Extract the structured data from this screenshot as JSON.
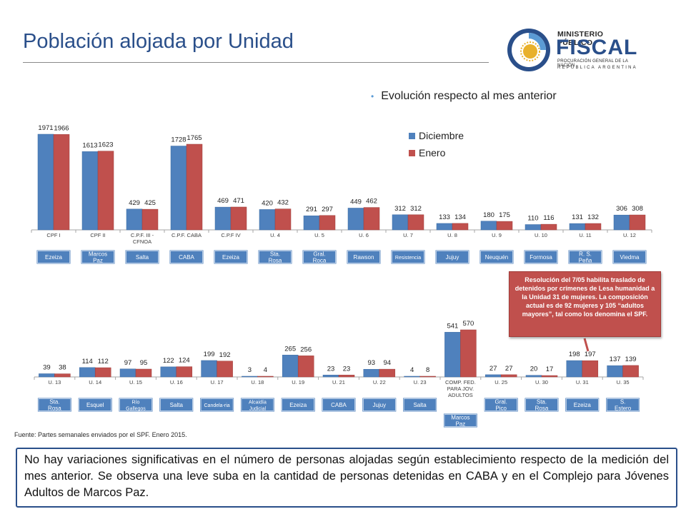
{
  "title": "Población alojada por Unidad",
  "subtitle": "Evolución respecto al mes anterior",
  "logo": {
    "line1": "MINISTERIO PÚBLICO",
    "line2": "FISCAL",
    "line3": "PROCURACIÓN GENERAL DE LA NACIÓN",
    "line4": "REPÚBLICA ARGENTINA"
  },
  "colors": {
    "diciembre": "#4f81bd",
    "enero": "#c0504d",
    "tag": "#4f81bd",
    "title": "#2a4f8a"
  },
  "chart_data": [
    {
      "type": "bar",
      "title": "",
      "legend_position": "top-right",
      "series": [
        {
          "name": "Diciembre",
          "values": [
            1971,
            1613,
            429,
            1728,
            469,
            420,
            291,
            449,
            312,
            133,
            180,
            110,
            131,
            306
          ]
        },
        {
          "name": "Enero",
          "values": [
            1966,
            1623,
            425,
            1765,
            471,
            432,
            297,
            462,
            312,
            134,
            175,
            116,
            132,
            308
          ]
        }
      ],
      "categories": [
        "CPF I",
        "CPF II",
        "C.P.F. III - CFNOA",
        "C.P.F. CABA",
        "C.P.F IV",
        "U. 4",
        "U. 5",
        "U. 6",
        "U. 7",
        "U. 8",
        "U. 9",
        "U. 10",
        "U. 11",
        "U. 12"
      ],
      "locations": [
        [
          "Ezeiza"
        ],
        [
          "Marcos Paz"
        ],
        [
          "Salta"
        ],
        [
          "CABA"
        ],
        [
          "Ezeiza"
        ],
        [
          "Sta. Rosa"
        ],
        [
          "Gral. Roca"
        ],
        [
          "Rawson"
        ],
        [
          "Resistencia"
        ],
        [
          "Jujuy"
        ],
        [
          "Neuquén"
        ],
        [
          "Formosa"
        ],
        [
          "R. S. Peña"
        ],
        [
          "Viedma"
        ]
      ]
    },
    {
      "type": "bar",
      "title": "",
      "series": [
        {
          "name": "Diciembre",
          "values": [
            39,
            114,
            97,
            122,
            199,
            3,
            265,
            23,
            93,
            4,
            541,
            27,
            20,
            198,
            137
          ]
        },
        {
          "name": "Enero",
          "values": [
            38,
            112,
            95,
            124,
            192,
            4,
            256,
            23,
            94,
            8,
            570,
            27,
            17,
            197,
            139
          ]
        }
      ],
      "categories": [
        "U. 13",
        "U. 14",
        "U. 15",
        "U. 16",
        "U. 17",
        "U. 18",
        "U. 19",
        "U. 21",
        "U. 22",
        "U. 23",
        "COMP. FED. PARA JOV. ADULTOS",
        "U. 25",
        "U. 30",
        "U. 31",
        "U. 35"
      ],
      "locations": [
        [
          "Sta. Rosa"
        ],
        [
          "Esquel"
        ],
        [
          "Río Gallegos"
        ],
        [
          "Salta"
        ],
        [
          "Candela-ria"
        ],
        [
          "Alcaidía Judicial"
        ],
        [
          "Ezeiza"
        ],
        [
          "CABA"
        ],
        [
          "Jujuy"
        ],
        [
          "Salta"
        ],
        [
          "Marcos Paz"
        ],
        [
          "Gral. Pico"
        ],
        [
          "Sta. Rosa"
        ],
        [
          "Ezeiza"
        ],
        [
          "S. Estero"
        ]
      ]
    }
  ],
  "annotation": "Resolución del 7/05 habilita traslado de detenidos por crímenes de Lesa humanidad a la Unidad 31 de mujeres. La composición actual es de 92 mujeres y 105 “adultos mayores”, tal como los denomina el SPF.",
  "source": "Fuente: Partes semanales enviados por el SPF. Enero 2015.",
  "summary": "No hay variaciones significativas en el número de personas alojadas según establecimiento respecto de la medición del mes anterior. Se observa una leve suba en la cantidad de personas detenidas en CABA y en el Complejo para Jóvenes Adultos de Marcos Paz."
}
